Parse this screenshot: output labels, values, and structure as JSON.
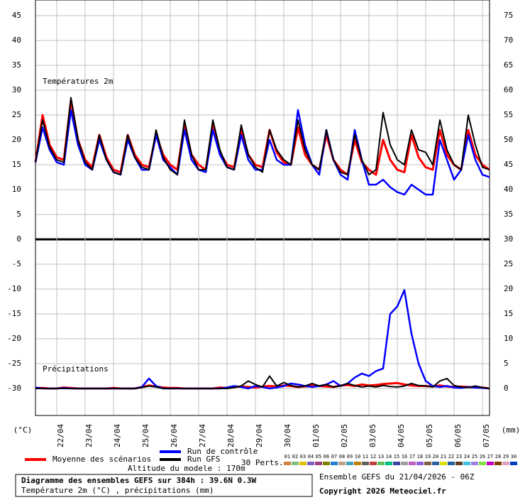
{
  "chart_data": {
    "type": "line",
    "title": "Diagramme des ensembles GEFS sur 384h : 39.6N 0.3W",
    "subtitle": "Température 2m (°C) , précipitations (mm)",
    "ylabel": "(°C)",
    "y2label": "(mm)",
    "annotations": [
      "Températures 2m",
      "Précipitations",
      "Altitude du modele : 170m",
      "Ensemble GEFS du 21/04/2026 - 06Z",
      "Copyright 2026 Meteociel.fr"
    ],
    "grid": true,
    "x": [
      0,
      6,
      12,
      18,
      24,
      30,
      36,
      42,
      48,
      54,
      60,
      66,
      72,
      78,
      84,
      90,
      96,
      102,
      108,
      114,
      120,
      126,
      132,
      138,
      144,
      150,
      156,
      162,
      168,
      174,
      180,
      186,
      192,
      198,
      204,
      210,
      216,
      222,
      228,
      234,
      240,
      246,
      252,
      258,
      264,
      270,
      276,
      282,
      288,
      294,
      300,
      306,
      312,
      318,
      324,
      330,
      336,
      342,
      348,
      354,
      360,
      366,
      372,
      378,
      384
    ],
    "xlim": [
      0,
      384
    ],
    "xticks": [
      {
        "value": 18,
        "label": "22/04"
      },
      {
        "value": 42,
        "label": "23/04"
      },
      {
        "value": 66,
        "label": "24/04"
      },
      {
        "value": 90,
        "label": "25/04"
      },
      {
        "value": 114,
        "label": "26/04"
      },
      {
        "value": 138,
        "label": "27/04"
      },
      {
        "value": 162,
        "label": "28/04"
      },
      {
        "value": 186,
        "label": "29/04"
      },
      {
        "value": 210,
        "label": "30/04"
      },
      {
        "value": 234,
        "label": "01/05"
      },
      {
        "value": 258,
        "label": "02/05"
      },
      {
        "value": 282,
        "label": "03/05"
      },
      {
        "value": 306,
        "label": "04/05"
      },
      {
        "value": 330,
        "label": "05/05"
      },
      {
        "value": 354,
        "label": "06/05"
      },
      {
        "value": 378,
        "label": "07/05"
      }
    ],
    "ylim": [
      -35.43,
      48.14
    ],
    "yticks": [
      45,
      40,
      35,
      30,
      25,
      20,
      15,
      10,
      5,
      0,
      -5,
      -10,
      -15,
      -20,
      -25,
      -30
    ],
    "y2lim": [
      -5.43,
      78.14
    ],
    "y2ticks": [
      75,
      70,
      65,
      60,
      55,
      50,
      45,
      40,
      35,
      30,
      25,
      20,
      15,
      10,
      5,
      0
    ],
    "series": [
      {
        "name": "Moyenne des scénarios",
        "color": "#ff0000",
        "axis": "y",
        "values": [
          15.5,
          25,
          19,
          16.5,
          16,
          28,
          20,
          16,
          14.5,
          21,
          16.5,
          14,
          13.5,
          21,
          17,
          15,
          14.5,
          21,
          17,
          15,
          14,
          23,
          17,
          15,
          14,
          23,
          17.5,
          15,
          14.5,
          22,
          17,
          15,
          14.5,
          22,
          17.5,
          15.5,
          15,
          22.5,
          17,
          15,
          14,
          21,
          16,
          14,
          13,
          20,
          15.5,
          14,
          13,
          20,
          16,
          14,
          13.5,
          21,
          16.5,
          14.5,
          14,
          22,
          17,
          15,
          14,
          22,
          17,
          15,
          14
        ]
      },
      {
        "name": "Run de contrôle",
        "color": "#0000ff",
        "axis": "y",
        "values": [
          15.5,
          22.5,
          18,
          15.5,
          15,
          26,
          19,
          15,
          14,
          20,
          16,
          13.5,
          13,
          20,
          16.5,
          14,
          14,
          21,
          16,
          14.5,
          13,
          22,
          16,
          14,
          13.5,
          22,
          17,
          14.5,
          14,
          21,
          16,
          14,
          14,
          20,
          16,
          15,
          15,
          26,
          19,
          15,
          13,
          22,
          16,
          13,
          12,
          22,
          16,
          11,
          11,
          12,
          10.5,
          9.5,
          9,
          11,
          10,
          9,
          9,
          20,
          16,
          12,
          14,
          21,
          16,
          13,
          12.5
        ]
      },
      {
        "name": "Run GFS",
        "color": "#000000",
        "axis": "y",
        "values": [
          15.5,
          24,
          18.5,
          16,
          15.5,
          28.5,
          20,
          15.5,
          14,
          21,
          16,
          13.5,
          13,
          21,
          16.5,
          14.5,
          14,
          22,
          16.5,
          14,
          13,
          24,
          17,
          14,
          14,
          24,
          18,
          14.5,
          14,
          23,
          17,
          14.5,
          13.5,
          22,
          18,
          16,
          15,
          24,
          18,
          15,
          14,
          22,
          16,
          13.5,
          13,
          21,
          16,
          13,
          14,
          25.5,
          19,
          16,
          15,
          22,
          18,
          17.5,
          15,
          24,
          18,
          15,
          14,
          25,
          19,
          14.5,
          14
        ]
      },
      {
        "name": "Moyenne des scénarios",
        "color": "#ff0000",
        "axis": "y2",
        "values": [
          0.1,
          0.1,
          0,
          0,
          0.2,
          0.1,
          0,
          0,
          0,
          0,
          0,
          0.1,
          0,
          0,
          0,
          0.3,
          0.6,
          0.4,
          0.2,
          0.1,
          0.1,
          0,
          0,
          0,
          0,
          0,
          0.2,
          0.1,
          0.3,
          0.4,
          0.3,
          0.2,
          0.4,
          0.5,
          0.4,
          0.6,
          0.5,
          0.3,
          0.4,
          0.6,
          0.5,
          0.4,
          0.3,
          0.6,
          0.7,
          0.5,
          0.8,
          0.6,
          0.7,
          0.9,
          1,
          1.1,
          0.8,
          0.6,
          0.5,
          0.5,
          0.4,
          0.6,
          0.4,
          0.3,
          0.4,
          0.3,
          0.2,
          0.2,
          0
        ]
      },
      {
        "name": "Run de contrôle",
        "color": "#0000ff",
        "axis": "y2",
        "values": [
          0.2,
          0,
          0,
          0,
          0.1,
          0,
          0,
          0,
          0,
          0,
          0,
          0,
          0,
          0,
          0,
          0.3,
          2,
          0.5,
          0,
          0,
          0,
          0,
          0,
          0,
          0,
          0,
          0,
          0.2,
          0.5,
          0.3,
          0,
          0.5,
          0.3,
          0,
          0.2,
          0.5,
          1,
          0.8,
          0.5,
          0.3,
          0.5,
          0.8,
          1.5,
          0.5,
          1,
          2.2,
          3,
          2.5,
          3.5,
          4,
          15,
          16.5,
          19.8,
          11,
          5,
          1.5,
          0.5,
          0.3,
          0.5,
          0.2,
          0.1,
          0.3,
          0.2,
          0.1,
          0
        ]
      },
      {
        "name": "Run GFS",
        "color": "#000000",
        "axis": "y2",
        "values": [
          0,
          0,
          0,
          0,
          0,
          0,
          0,
          0,
          0,
          0,
          0,
          0,
          0,
          0,
          0,
          0.2,
          0.5,
          0.3,
          0,
          0,
          0,
          0,
          0,
          0,
          0,
          0,
          0,
          0,
          0.2,
          0.5,
          1.5,
          0.8,
          0.3,
          2.5,
          0.5,
          1.2,
          0.6,
          0.3,
          0.5,
          1,
          0.5,
          0.8,
          0.3,
          0.5,
          1,
          0.6,
          0.3,
          0.5,
          0.3,
          0.6,
          0.4,
          0.3,
          0.5,
          1,
          0.6,
          0.5,
          0.3,
          1.5,
          2,
          0.6,
          0.3,
          0.2,
          0.5,
          0.2,
          0
        ]
      }
    ],
    "members": {
      "label": "30 Perts.",
      "names": [
        "01",
        "02",
        "03",
        "04",
        "05",
        "06",
        "07",
        "08",
        "09",
        "10",
        "11",
        "12",
        "13",
        "14",
        "15",
        "16",
        "17",
        "18",
        "19",
        "20",
        "21",
        "22",
        "23",
        "24",
        "25",
        "26",
        "27",
        "28",
        "29",
        "30"
      ],
      "colors": [
        "#d08040",
        "#80c080",
        "#e0c000",
        "#8060c0",
        "#a04080",
        "#808000",
        "#2080d0",
        "#c0a080",
        "#40a0c0",
        "#c08000",
        "#606060",
        "#c04040",
        "#60c060",
        "#00c080",
        "#4040a0",
        "#a0a0a0",
        "#c060c0",
        "#9060e0",
        "#806040",
        "#3060a0",
        "#e0e000",
        "#2060a0",
        "#604020",
        "#40c0e0",
        "#a080e0",
        "#80e040",
        "#c000c0",
        "#804000",
        "#e0a0c0",
        "#0040c0"
      ]
    }
  }
}
